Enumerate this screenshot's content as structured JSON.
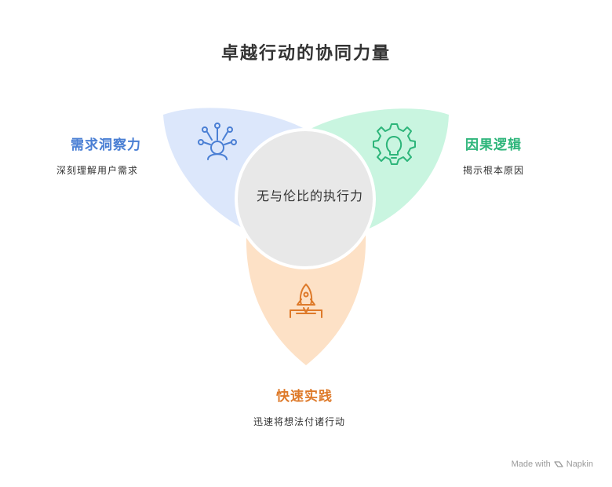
{
  "title": "卓越行动的协同力量",
  "center": {
    "text": "无与伦比的执行力"
  },
  "sections": {
    "left": {
      "label": "需求洞察力",
      "description": "深刻理解用户需求",
      "color": "#4a7fd4",
      "fill": "#dce7fb",
      "icon": "user-network-icon"
    },
    "right": {
      "label": "因果逻辑",
      "description": "揭示根本原因",
      "color": "#2db57a",
      "fill": "#c9f5e0",
      "icon": "lightbulb-gear-icon"
    },
    "bottom": {
      "label": "快速实践",
      "description": "迅速将想法付诸行动",
      "color": "#de7a2a",
      "fill": "#fde1c6",
      "icon": "rocket-launch-icon"
    }
  },
  "watermark": {
    "prefix": "Made with",
    "brand": "Napkin"
  }
}
